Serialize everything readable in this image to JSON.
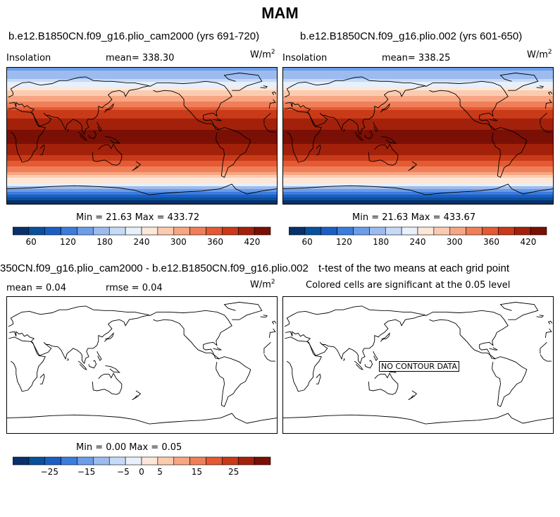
{
  "title": "MAM",
  "panels": [
    {
      "subtitle": "b.e12.B1850CN.f09_g16.plio_cam2000 (yrs 691-720)",
      "left_label": "Insolation",
      "mean_label": "mean=  338.30",
      "units": "W/m",
      "units_exp": "2",
      "minmax": "Min =   21.63 Max = 433.72"
    },
    {
      "subtitle": "b.e12.B1850CN.f09_g16.plio.002 (yrs 601-650)",
      "left_label": "Insolation",
      "mean_label": "mean=  338.25",
      "units": "W/m",
      "units_exp": "2",
      "minmax": "Min =   21.63 Max = 433.67"
    },
    {
      "subtitle": "350CN.f09_g16.plio_cam2000 - b.e12.B1850CN.f09_g16.plio.002",
      "left_label": "mean =    0.04",
      "mean_label": "rmse =    0.04",
      "units": "W/m",
      "units_exp": "2",
      "minmax": "Min =    0.00 Max =    0.05"
    },
    {
      "subtitle": "t-test of the two means at each grid point",
      "sig_label": "Colored cells are significant at the 0.05 level",
      "no_contour": "NO CONTOUR DATA"
    }
  ],
  "colorbar_colors": [
    "#08306b",
    "#08519c",
    "#1c5ec4",
    "#3b7ddd",
    "#6b9de8",
    "#9cbbef",
    "#c6daf6",
    "#e7f0fb",
    "#fde7d8",
    "#fbcbb0",
    "#f7a582",
    "#f07f59",
    "#e35a33",
    "#c93a19",
    "#a3210a",
    "#7a0f05"
  ],
  "chart_data": [
    {
      "type": "heatmap",
      "title": "b.e12.B1850CN.f09_g16.plio_cam2000 (yrs 691-720)",
      "variable": "Insolation",
      "units": "W/m2",
      "mean": 338.3,
      "min": 21.63,
      "max": 433.72,
      "colorbar_ticks": [
        60,
        120,
        180,
        240,
        300,
        360,
        420
      ],
      "colorbar_range": [
        30,
        450
      ],
      "zonal_profile": {
        "lat": [
          90,
          75,
          60,
          45,
          30,
          15,
          0,
          -15,
          -30,
          -45,
          -60,
          -75,
          -90
        ],
        "values": [
          150,
          190,
          260,
          320,
          380,
          415,
          430,
          420,
          385,
          330,
          250,
          140,
          25
        ]
      }
    },
    {
      "type": "heatmap",
      "title": "b.e12.B1850CN.f09_g16.plio.002 (yrs 601-650)",
      "variable": "Insolation",
      "units": "W/m2",
      "mean": 338.25,
      "min": 21.63,
      "max": 433.67,
      "colorbar_ticks": [
        60,
        120,
        180,
        240,
        300,
        360,
        420
      ],
      "colorbar_range": [
        30,
        450
      ],
      "zonal_profile": {
        "lat": [
          90,
          75,
          60,
          45,
          30,
          15,
          0,
          -15,
          -30,
          -45,
          -60,
          -75,
          -90
        ],
        "values": [
          150,
          190,
          260,
          320,
          380,
          415,
          430,
          420,
          385,
          330,
          250,
          140,
          25
        ]
      }
    },
    {
      "type": "heatmap",
      "title": "350CN.f09_g16.plio_cam2000 - b.e12.B1850CN.f09_g16.plio.002",
      "units": "W/m2",
      "mean": 0.04,
      "rmse": 0.04,
      "min": 0.0,
      "max": 0.05,
      "colorbar_ticks": [
        -25,
        -15,
        -5,
        0,
        5,
        15,
        25
      ],
      "colorbar_range": [
        -35,
        35
      ]
    },
    {
      "type": "heatmap",
      "title": "t-test of the two means at each grid point",
      "annotation": "NO CONTOUR DATA"
    }
  ]
}
